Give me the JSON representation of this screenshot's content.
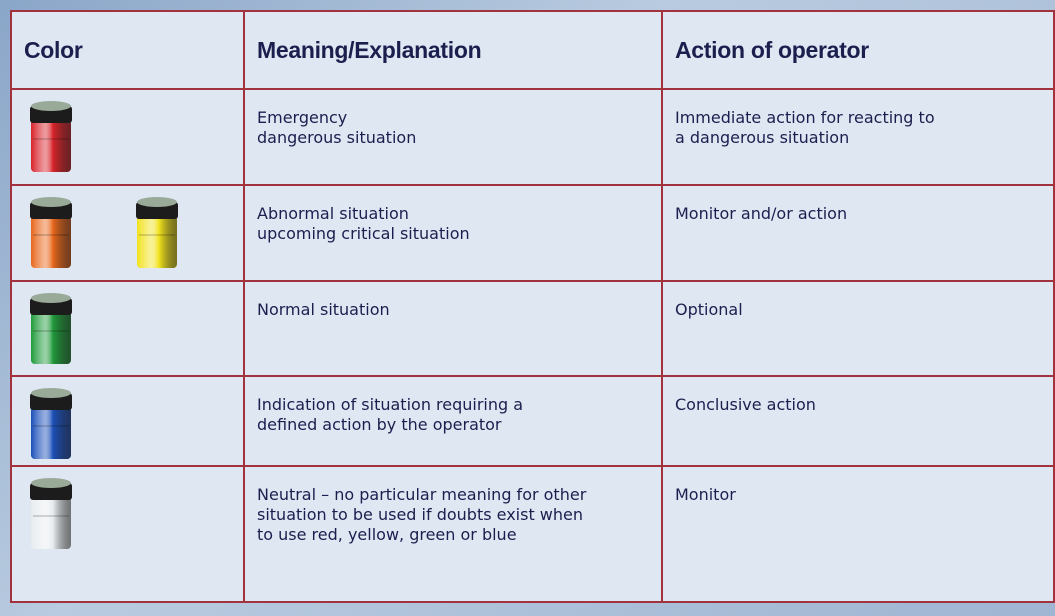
{
  "table": {
    "header": [
      "Color",
      "Meaning/Explanation",
      "Action of operator"
    ],
    "rows": [
      {
        "meaning": [
          "Emergency",
          "dangerous situation"
        ],
        "action": [
          "Immediate action for reacting to",
          "a dangerous situation"
        ]
      },
      {
        "meaning": [
          "Abnormal situation",
          "upcoming critical situation"
        ],
        "action": [
          "Monitor and/or action"
        ]
      },
      {
        "meaning": [
          "Normal situation"
        ],
        "action": [
          "Optional"
        ]
      },
      {
        "meaning": [
          "Indication of situation requiring a",
          "defined action by the operator"
        ],
        "action": [
          "Conclusive action"
        ]
      },
      {
        "meaning": [
          "Neutral – no particular meaning for other",
          "situation to be used if doubts exist when",
          "to use red, yellow, green or blue"
        ],
        "action": [
          "Monitor"
        ]
      }
    ]
  }
}
